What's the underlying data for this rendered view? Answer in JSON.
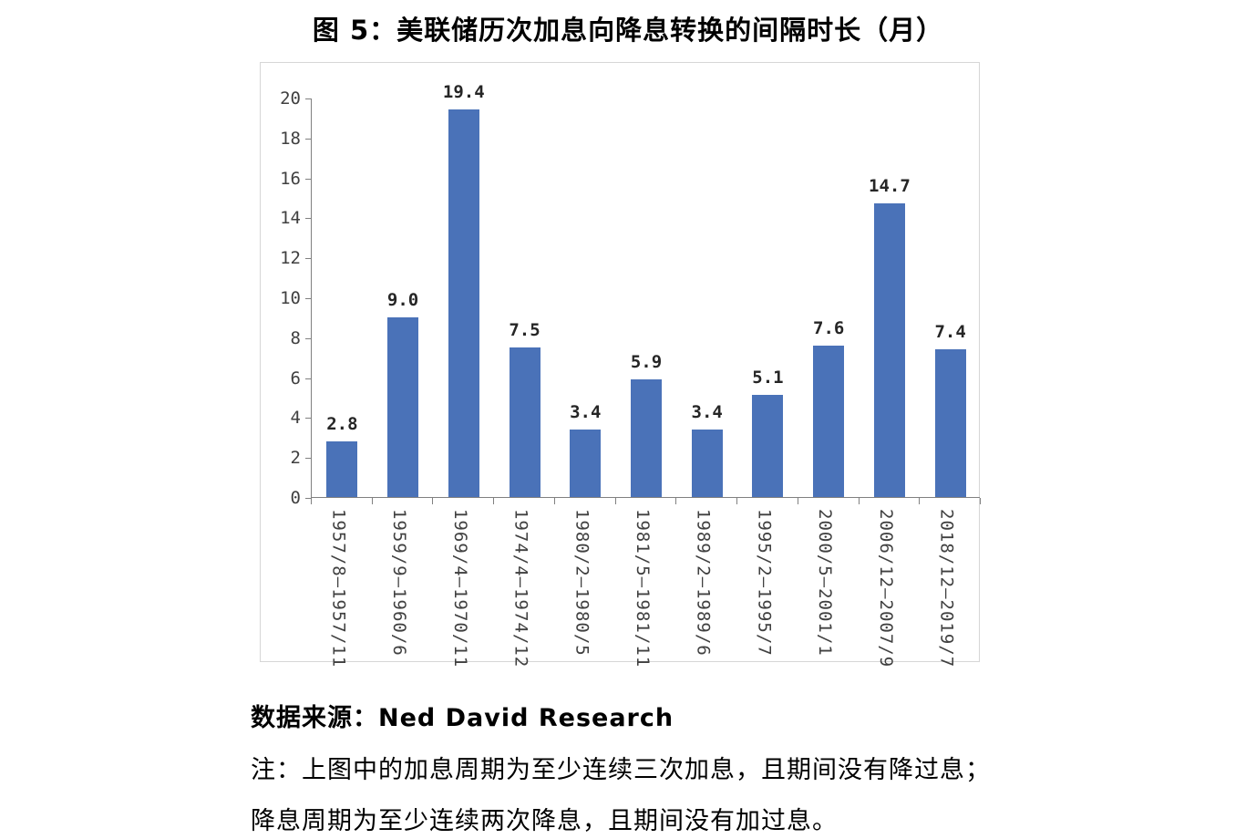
{
  "title": "图 5：美联储历次加息向降息转换的间隔时长（月）",
  "chart_data": {
    "type": "bar",
    "title": "图 5：美联储历次加息向降息转换的间隔时长（月）",
    "categories": [
      "1957/8—1957/11",
      "1959/9—1960/6",
      "1969/4—1970/11",
      "1974/4—1974/12",
      "1980/2—1980/5",
      "1981/5—1981/11",
      "1989/2—1989/6",
      "1995/2—1995/7",
      "2000/5—2001/1",
      "2006/12—2007/9",
      "2018/12—2019/7"
    ],
    "values": [
      2.8,
      9.0,
      19.4,
      7.5,
      3.4,
      5.9,
      3.4,
      5.1,
      7.6,
      14.7,
      7.4
    ],
    "value_labels": [
      "2.8",
      "9.0",
      "19.4",
      "7.5",
      "3.4",
      "5.9",
      "3.4",
      "5.1",
      "7.6",
      "14.7",
      "7.4"
    ],
    "xlabel": "",
    "ylabel": "",
    "ylim": [
      0,
      20
    ],
    "yticks": [
      0,
      2,
      4,
      6,
      8,
      10,
      12,
      14,
      16,
      18,
      20
    ],
    "bar_color": "#4a72b8",
    "grid": false,
    "legend": false
  },
  "footer": {
    "source": "数据来源：Ned David Research",
    "note_line1": "注：上图中的加息周期为至少连续三次加息，且期间没有降过息；",
    "note_line2": "降息周期为至少连续两次降息，且期间没有加过息。"
  }
}
